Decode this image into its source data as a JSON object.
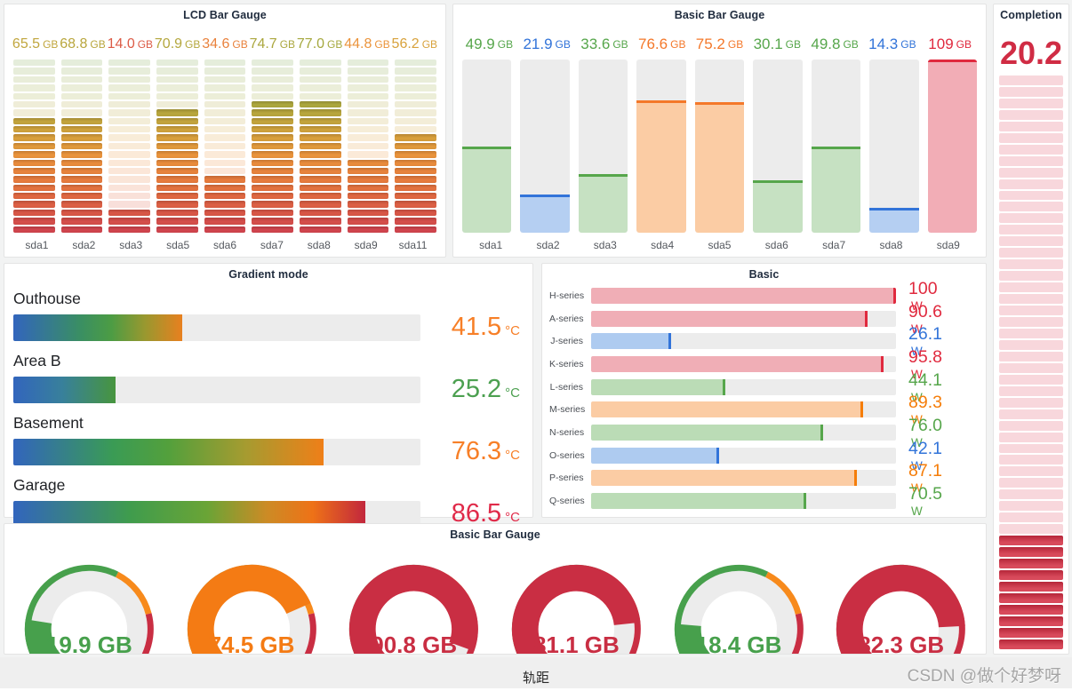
{
  "page": {
    "caption": "轨距",
    "watermark": "CSDN @做个好梦呀",
    "background": "#f2f3f3"
  },
  "lcd_gradient_stops": [
    [
      0.0,
      "#cf4150"
    ],
    [
      0.14,
      "#dc5b46"
    ],
    [
      0.3,
      "#e87a3e"
    ],
    [
      0.45,
      "#eb943c"
    ],
    [
      0.56,
      "#d8a23c"
    ],
    [
      0.66,
      "#c0a63d"
    ],
    [
      0.78,
      "#a3a83e"
    ],
    [
      0.9,
      "#8da741"
    ],
    [
      1.0,
      "#7aa64b"
    ]
  ],
  "chart_data": [
    {
      "id": "lcd-bar-gauge",
      "type": "bar",
      "display": "lcd",
      "title": "LCD Bar Gauge",
      "unit": "GB",
      "ylim": [
        0,
        100
      ],
      "cells": 21,
      "categories": [
        "sda1",
        "sda2",
        "sda3",
        "sda5",
        "sda6",
        "sda7",
        "sda8",
        "sda9",
        "sda11"
      ],
      "values": [
        65.5,
        68.8,
        14.0,
        70.9,
        34.6,
        74.7,
        77.0,
        44.8,
        56.2
      ],
      "display_values": [
        "65.5",
        "68.8",
        "14.0",
        "70.9",
        "34.6",
        "74.7",
        "77.0",
        "44.8",
        "56.2"
      ]
    },
    {
      "id": "basic-bar-gauge",
      "type": "bar",
      "title": "Basic Bar Gauge",
      "unit": "GB",
      "ylim": [
        0,
        100
      ],
      "categories": [
        "sda1",
        "sda2",
        "sda3",
        "sda4",
        "sda5",
        "sda6",
        "sda7",
        "sda8",
        "sda9"
      ],
      "values": [
        49.9,
        21.9,
        33.6,
        76.6,
        75.2,
        30.1,
        49.8,
        14.3,
        109
      ],
      "display_values": [
        "49.9",
        "21.9",
        "33.6",
        "76.6",
        "75.2",
        "30.1",
        "49.8",
        "14.3",
        "109"
      ],
      "colors": [
        "#56a64b",
        "#3274d9",
        "#56a64b",
        "#f4782a",
        "#f4782a",
        "#56a64b",
        "#56a64b",
        "#3274d9",
        "#e0293e"
      ],
      "fills": [
        "#c6e1c2",
        "#b5cff2",
        "#c6e1c2",
        "#fbcca4",
        "#fbcca4",
        "#c6e1c2",
        "#c6e1c2",
        "#b5cff2",
        "#f2adb6"
      ]
    },
    {
      "id": "completion",
      "type": "bar",
      "display": "lcd-vertical",
      "title": "Completion",
      "ylim": [
        0,
        100
      ],
      "cells": 50,
      "filled_cells": 10,
      "value": 20.2,
      "display_value": "20.2",
      "value_color": "#d02c44",
      "cell_off": "#f8d7dc",
      "cell_on": "#d84a5b",
      "cell_on_dark": "#b52639"
    },
    {
      "id": "gradient-mode",
      "type": "bar",
      "orientation": "horizontal",
      "display": "gradient",
      "title": "Gradient mode",
      "unit": "°C",
      "ylim": [
        0,
        100
      ],
      "categories": [
        "Outhouse",
        "Area B",
        "Basement",
        "Garage"
      ],
      "values": [
        41.5,
        25.2,
        76.3,
        86.5
      ],
      "display_values": [
        "41.5",
        "25.2",
        "76.3",
        "86.5"
      ],
      "colors": [
        "#f77f27",
        "#4ca050",
        "#f77f27",
        "#e02a49"
      ],
      "gradients": [
        [
          [
            "#3265bd",
            0
          ],
          [
            "#3a8f62",
            40
          ],
          [
            "#4c9c44",
            58
          ],
          [
            "#99982f",
            78
          ],
          [
            "#e8801f",
            100
          ]
        ],
        [
          [
            "#3265bd",
            0
          ],
          [
            "#38809b",
            48
          ],
          [
            "#47953e",
            100
          ]
        ],
        [
          [
            "#3265bd",
            0
          ],
          [
            "#3a9b55",
            32
          ],
          [
            "#53a03c",
            50
          ],
          [
            "#a69b30",
            75
          ],
          [
            "#ef7f18",
            100
          ]
        ],
        [
          [
            "#3265bd",
            0
          ],
          [
            "#3f9c4d",
            33
          ],
          [
            "#6aa436",
            55
          ],
          [
            "#cc8b25",
            72
          ],
          [
            "#ee7217",
            85
          ],
          [
            "#c2273d",
            100
          ]
        ]
      ]
    },
    {
      "id": "basic",
      "type": "bar",
      "orientation": "horizontal",
      "title": "Basic",
      "unit": "W",
      "ylim": [
        0,
        100
      ],
      "categories": [
        "H-series",
        "A-series",
        "J-series",
        "K-series",
        "L-series",
        "M-series",
        "N-series",
        "O-series",
        "P-series",
        "Q-series"
      ],
      "values": [
        100,
        90.6,
        26.1,
        95.8,
        44.1,
        89.3,
        76.0,
        42.1,
        87.1,
        70.5
      ],
      "display_values": [
        "100",
        "90.6",
        "26.1",
        "95.8",
        "44.1",
        "89.3",
        "76.0",
        "42.1",
        "87.1",
        "70.5"
      ],
      "colors": [
        "#e0293e",
        "#e0293e",
        "#3274d9",
        "#e0293e",
        "#56a64b",
        "#f57d09",
        "#56a64b",
        "#3274d9",
        "#f57d09",
        "#56a64b"
      ],
      "fills": [
        "#f0aeb6",
        "#f0aeb6",
        "#aecbf0",
        "#f0aeb6",
        "#bbdcb6",
        "#fbcca4",
        "#bbdcb6",
        "#aecbf0",
        "#fbcca4",
        "#bbdcb6"
      ]
    },
    {
      "id": "gauges",
      "type": "gauge",
      "title": "Basic Bar Gauge",
      "unit": "GB",
      "ylim": [
        0,
        100
      ],
      "values": [
        19.9,
        74.5,
        90.8,
        81.1,
        18.4,
        82.3
      ],
      "display_values": [
        "19.9",
        "74.5",
        "90.8",
        "81.1",
        "18.4",
        "82.3"
      ],
      "colors": [
        "#47a04c",
        "#f47b14",
        "#c92e43",
        "#c92e43",
        "#47a04c",
        "#c92e43"
      ],
      "track": "#ececec",
      "thresholds": [
        {
          "up_to": 60,
          "color": "#47a04c"
        },
        {
          "up_to": 78,
          "color": "#f78a1c"
        },
        {
          "up_to": 100,
          "color": "#c92e43"
        }
      ]
    }
  ]
}
